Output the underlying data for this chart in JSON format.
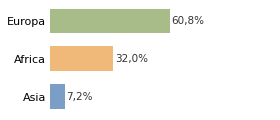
{
  "categories": [
    "Asia",
    "Africa",
    "Europa"
  ],
  "values": [
    7.2,
    32.0,
    60.8
  ],
  "bar_colors": [
    "#7b9ec7",
    "#f0b97a",
    "#a8bc8a"
  ],
  "labels": [
    "7,2%",
    "32,0%",
    "60,8%"
  ],
  "xlim": [
    0,
    100
  ],
  "background_color": "#ffffff",
  "bar_height": 0.65,
  "label_fontsize": 7.5,
  "tick_fontsize": 8
}
